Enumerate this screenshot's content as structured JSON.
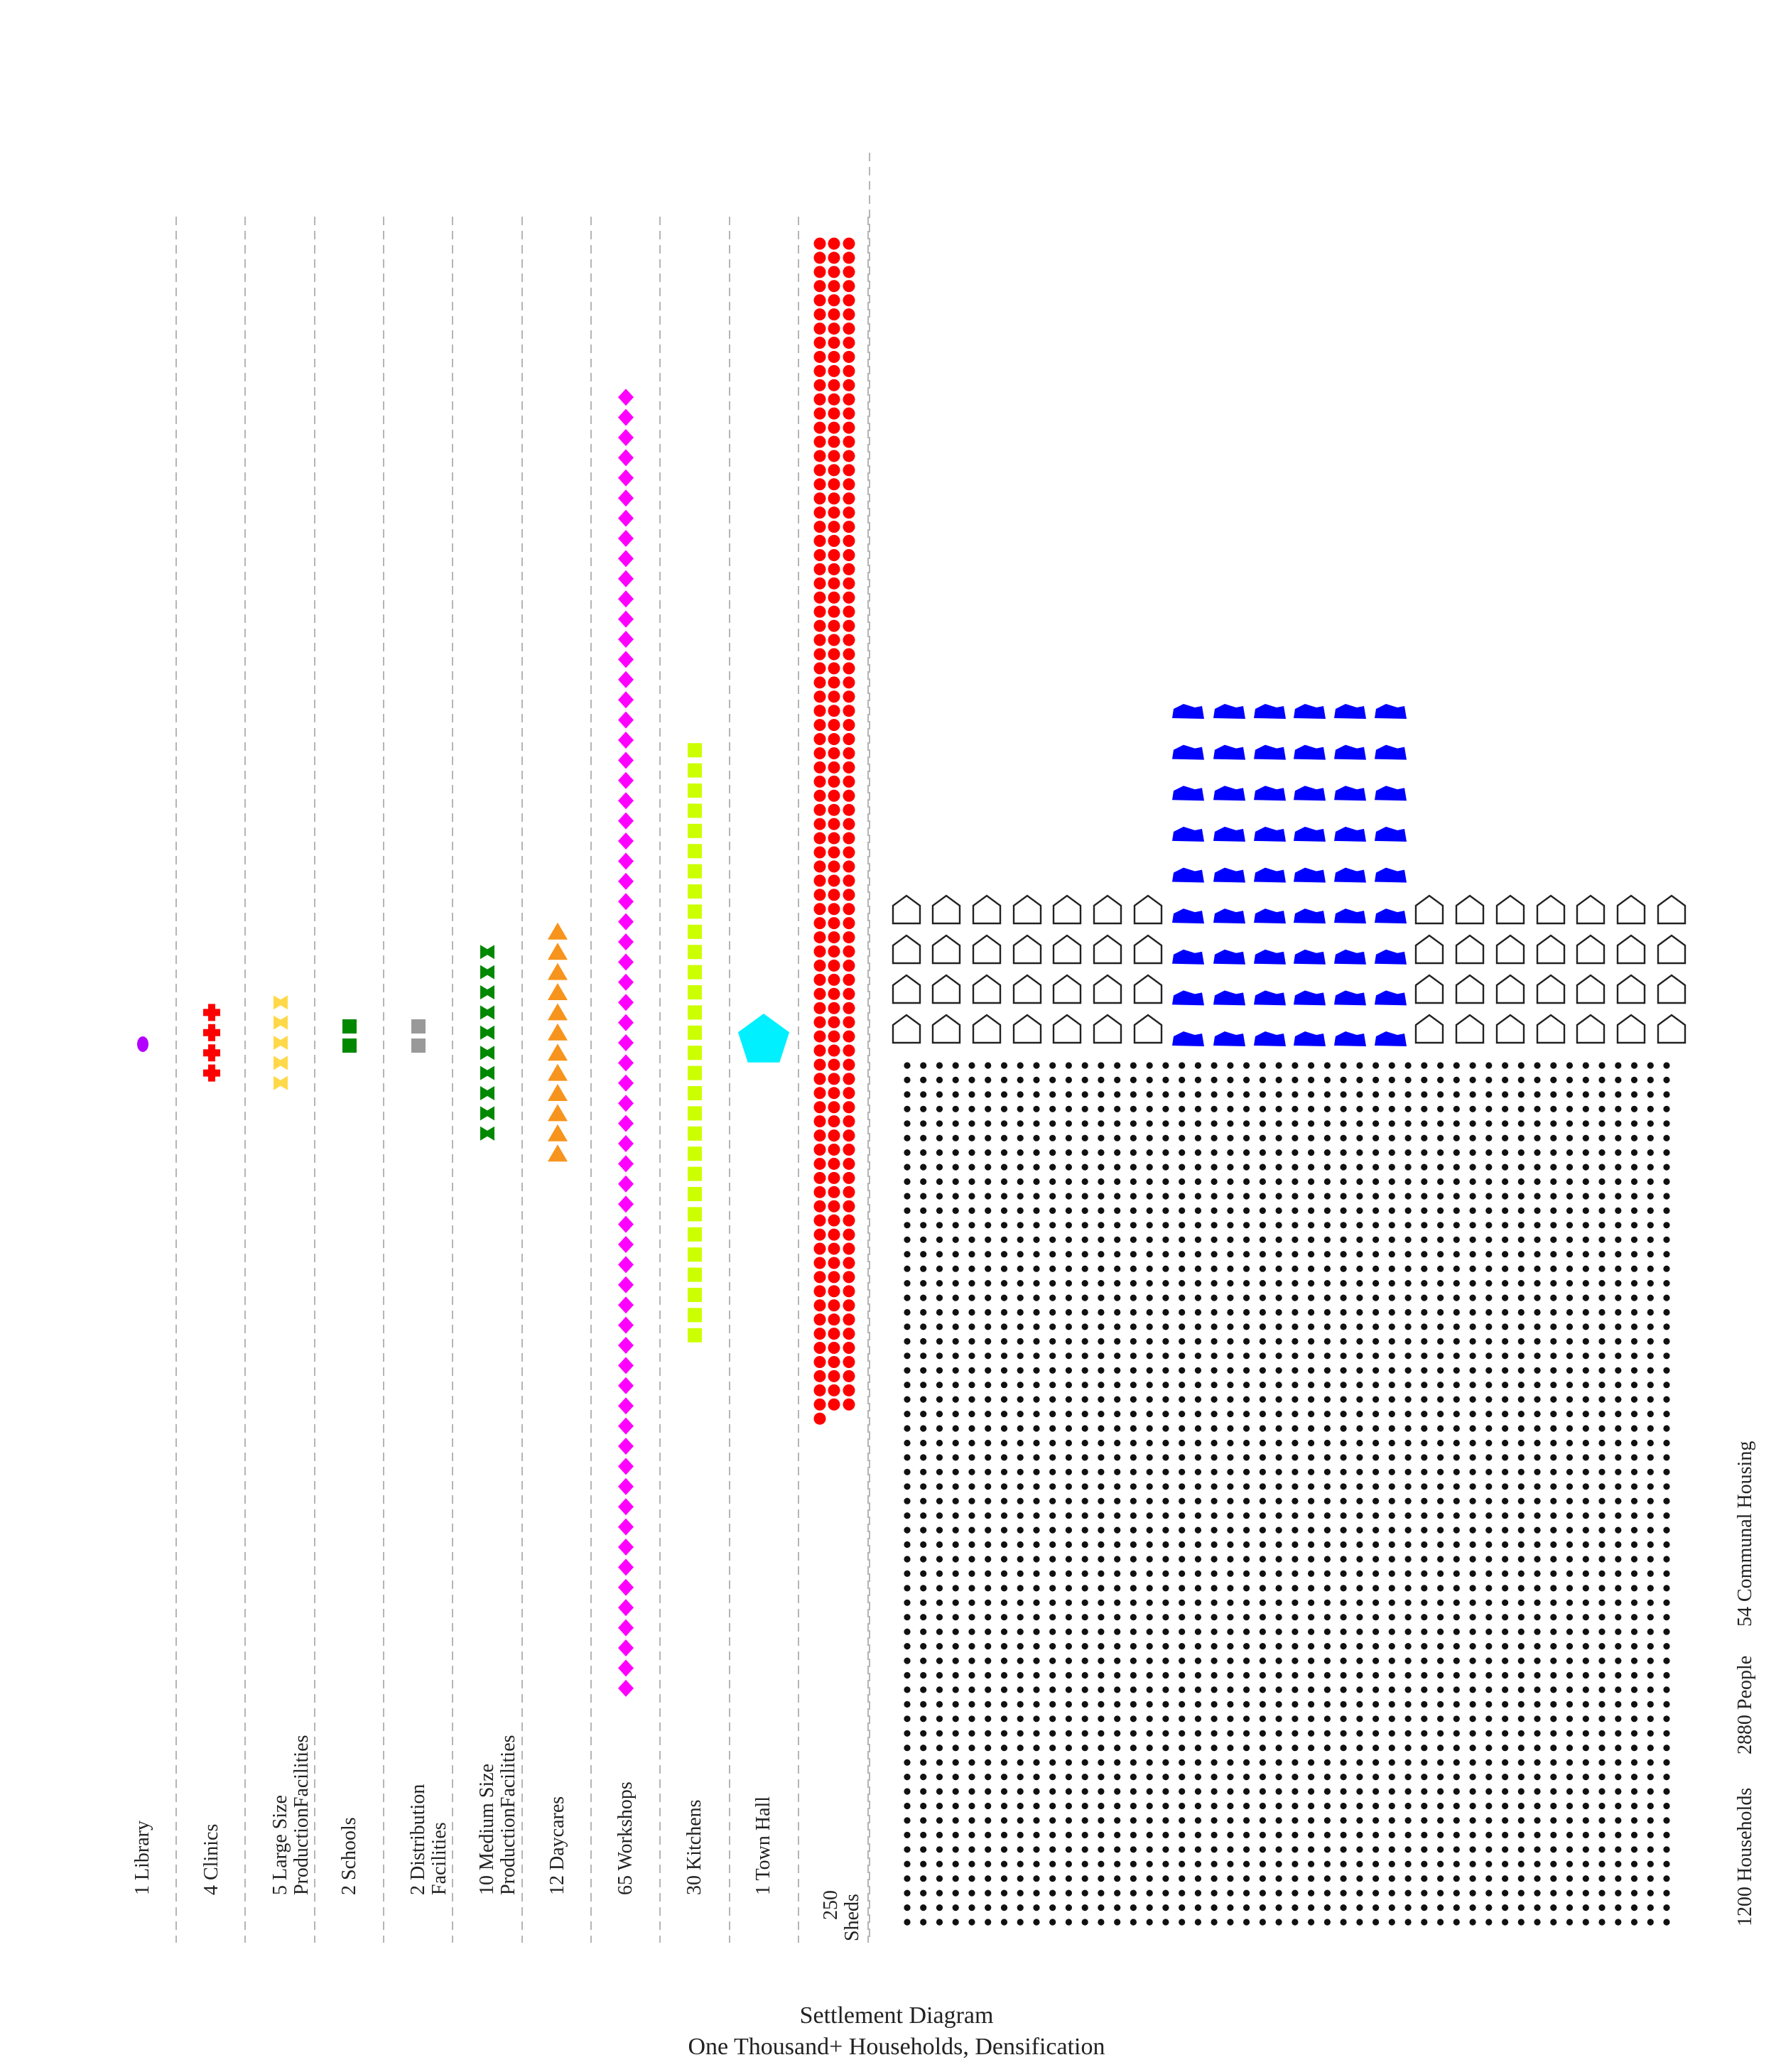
{
  "caption": {
    "line1": "Settlement Diagram",
    "line2": "One Thousand+ Households, Densification"
  },
  "facilities": [
    {
      "key": "library",
      "label": [
        "1 Library"
      ],
      "count": 1,
      "shape": "ellipse",
      "color": "#b300ff"
    },
    {
      "key": "clinics",
      "label": [
        "4 Clinics"
      ],
      "count": 4,
      "shape": "cross",
      "color": "#ff0000"
    },
    {
      "key": "large-production",
      "label": [
        "5 Large Size",
        "ProductionFacilities"
      ],
      "count": 5,
      "shape": "bowtie",
      "color": "#ffd84a"
    },
    {
      "key": "schools",
      "label": [
        "2  Schools"
      ],
      "count": 2,
      "shape": "square",
      "color": "#008800"
    },
    {
      "key": "distribution",
      "label": [
        "2 Distribution",
        "Facilities"
      ],
      "count": 2,
      "shape": "square",
      "color": "#999999"
    },
    {
      "key": "medium-production",
      "label": [
        "10 Medium Size",
        "ProductionFacilities"
      ],
      "count": 10,
      "shape": "bowtie",
      "color": "#008800"
    },
    {
      "key": "daycares",
      "label": [
        "12 Daycares"
      ],
      "count": 12,
      "shape": "triangle",
      "color": "#f7941d"
    },
    {
      "key": "workshops",
      "label": [
        "65 Workshops"
      ],
      "count": 65,
      "shape": "diamond",
      "color": "#ff00ff"
    },
    {
      "key": "kitchens",
      "label": [
        "30 Kitchens"
      ],
      "count": 30,
      "shape": "square",
      "color": "#ccff00"
    },
    {
      "key": "town-hall",
      "label": [
        "1 Town Hall"
      ],
      "count": 1,
      "shape": "pentagon",
      "color": "#00f0ff"
    },
    {
      "key": "sheds",
      "label": [
        "250",
        "Sheds"
      ],
      "count": 250,
      "shape": "circle",
      "color": "#ff0000"
    }
  ],
  "totals": {
    "households": "1200 Households",
    "people": "2880 People",
    "communal": "54 Communal Housing"
  },
  "people": {
    "count": 2880,
    "color": "#111111"
  },
  "households": {
    "count": 1200,
    "outline_color": "#222222"
  },
  "communal_housing": {
    "count": 54,
    "color": "#0000ff"
  }
}
